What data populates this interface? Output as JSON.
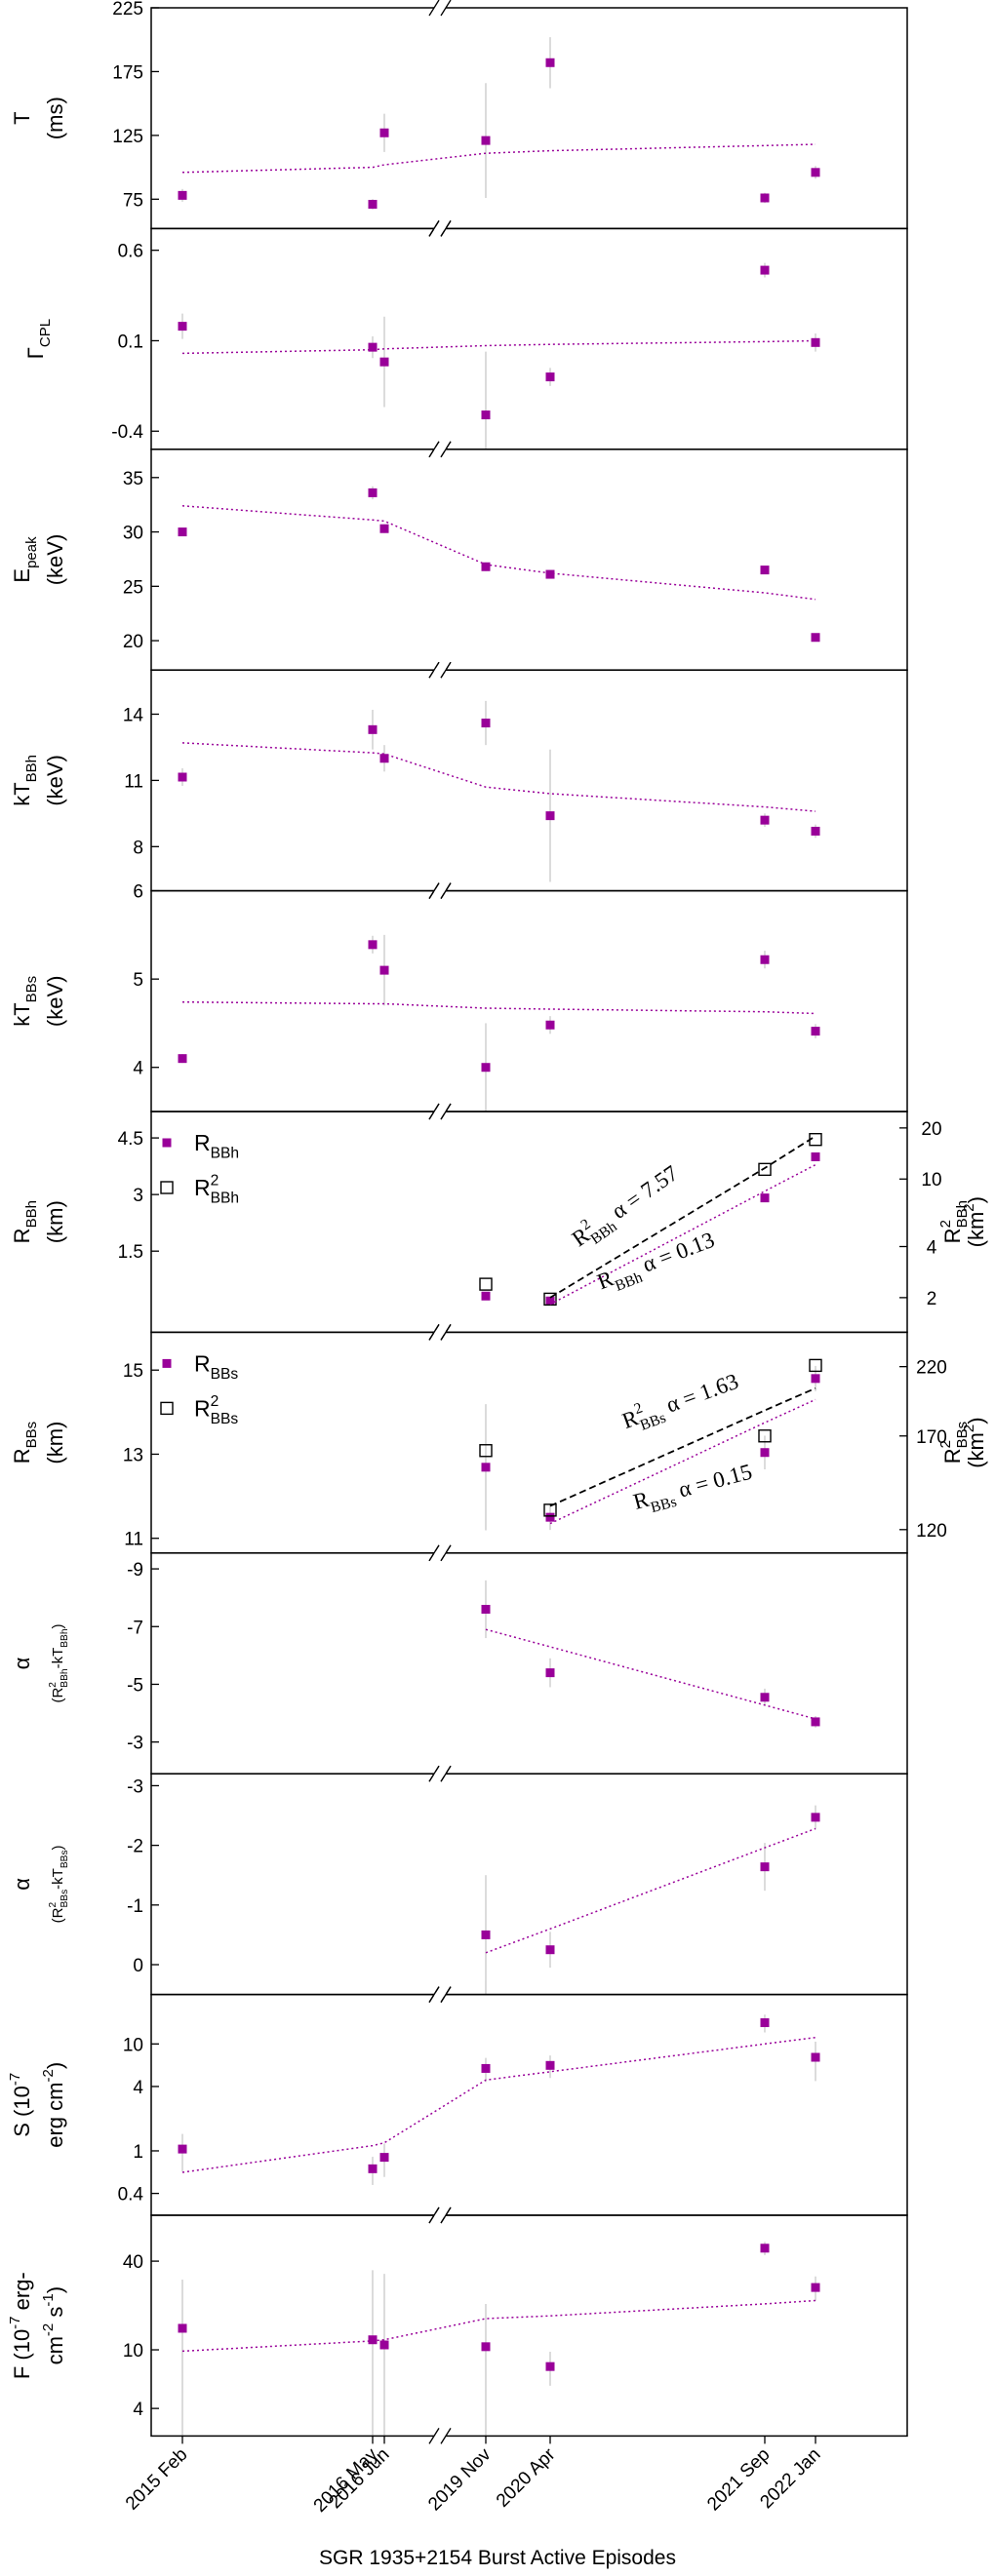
{
  "chart_data": {
    "type": "multi-panel",
    "categories": [
      "2015 Feb",
      "2016 May",
      "2016 Jun",
      "2019 Nov",
      "2020 Apr",
      "2021 Sep",
      "2022 Jan"
    ],
    "x_label": "SGR 1935+2154 Burst Active Episodes",
    "panels": [
      {
        "type": "scatter",
        "yscale": "linear",
        "ylim": [
          52,
          225
        ],
        "yticks": [
          75,
          125,
          175,
          225
        ],
        "y_label": [
          [
            {
              "text": "T"
            }
          ],
          [
            {
              "text": "(ms)"
            }
          ]
        ],
        "series": [
          {
            "marker": "square-filled",
            "color": "#990099",
            "values": [
              78,
              71,
              127,
              121,
              182,
              76,
              96
            ],
            "errors": [
              5,
              4,
              15,
              45,
              20,
              4,
              5
            ]
          },
          {
            "line": "dotted",
            "color": "#990099",
            "values": [
              96,
              100,
              102,
              111,
              113,
              117,
              118
            ]
          }
        ]
      },
      {
        "type": "scatter",
        "yscale": "linear",
        "ylim": [
          -0.5,
          0.72
        ],
        "yticks": [
          -0.4,
          0.1,
          0.6
        ],
        "y_label": [
          [
            {
              "text": "Γ"
            },
            {
              "text": "CPL",
              "pos": "sub"
            }
          ]
        ],
        "series": [
          {
            "marker": "square-filled",
            "color": "#990099",
            "values": [
              0.18,
              0.064,
              -0.017,
              -0.31,
              -0.1,
              0.49,
              0.09
            ],
            "errors": [
              0.07,
              0.06,
              0.25,
              0.35,
              0.05,
              0.04,
              0.05
            ]
          },
          {
            "line": "dotted",
            "color": "#990099",
            "values": [
              0.03,
              0.05,
              0.055,
              0.073,
              0.08,
              0.095,
              0.1
            ]
          }
        ]
      },
      {
        "type": "scatter",
        "yscale": "linear",
        "ylim": [
          17.3,
          37.6
        ],
        "yticks": [
          20,
          25,
          30,
          35
        ],
        "y_label": [
          [
            {
              "text": "E"
            },
            {
              "text": "peak",
              "pos": "sub"
            }
          ],
          [
            {
              "text": "(keV)"
            }
          ]
        ],
        "series": [
          {
            "marker": "square-filled",
            "color": "#990099",
            "values": [
              30,
              33.6,
              30.3,
              26.8,
              26.1,
              26.5,
              20.3
            ],
            "errors": [
              0.3,
              0.6,
              0.4,
              0.4,
              0.3,
              0.3,
              0.3
            ]
          },
          {
            "line": "dotted",
            "color": "#990099",
            "values": [
              32.4,
              31.1,
              31,
              27,
              26.2,
              24.4,
              23.8
            ]
          }
        ]
      },
      {
        "type": "scatter",
        "yscale": "linear",
        "ylim": [
          6,
          16
        ],
        "yticks": [
          8,
          11,
          14
        ],
        "y_label": [
          [
            {
              "text": "kT"
            },
            {
              "text": "BBh",
              "pos": "sub"
            }
          ],
          [
            {
              "text": "(keV)"
            }
          ]
        ],
        "series": [
          {
            "marker": "square-filled",
            "color": "#990099",
            "values": [
              11.15,
              13.3,
              12,
              13.6,
              9.4,
              9.2,
              8.7
            ],
            "errors": [
              0.4,
              0.9,
              0.6,
              1,
              3,
              0.3,
              0.3
            ]
          },
          {
            "line": "dotted",
            "color": "#990099",
            "values": [
              12.7,
              12.25,
              12.2,
              10.7,
              10.4,
              9.8,
              9.6
            ]
          }
        ]
      },
      {
        "type": "scatter",
        "yscale": "linear",
        "ylim": [
          3.5,
          6
        ],
        "yticks": [
          4,
          5,
          6
        ],
        "y_label": [
          [
            {
              "text": "kT"
            },
            {
              "text": "BBs",
              "pos": "sub"
            }
          ],
          [
            {
              "text": "(keV)"
            }
          ]
        ],
        "series": [
          {
            "marker": "square-filled",
            "color": "#990099",
            "values": [
              4.1,
              5.39,
              5.1,
              4,
              4.48,
              5.22,
              4.41
            ],
            "errors": [
              0.05,
              0.1,
              0.4,
              0.5,
              0.1,
              0.1,
              0.08
            ]
          },
          {
            "line": "dotted",
            "color": "#990099",
            "values": [
              4.74,
              4.72,
              4.72,
              4.67,
              4.66,
              4.63,
              4.61
            ]
          }
        ]
      },
      {
        "type": "scatter",
        "yscale": "linear",
        "ylim": [
          -0.65,
          5.2
        ],
        "yticks": [
          1.5,
          3,
          4.5
        ],
        "y2scale": "log",
        "y2lim": [
          1.25,
          25
        ],
        "y2ticks": [
          2,
          4,
          10,
          20
        ],
        "legend": "top-left",
        "y_label": [
          [
            {
              "text": "R"
            },
            {
              "text": "BBh",
              "pos": "sub"
            }
          ],
          [
            {
              "text": "(km)"
            }
          ]
        ],
        "y2_label": [
          [
            {
              "text": "R"
            },
            {
              "text": "2",
              "pos": "sup"
            },
            {
              "text": "BBh",
              "pos": "sub"
            }
          ],
          [
            {
              "text": "(km"
            },
            {
              "text": "2",
              "pos": "sup"
            },
            {
              "text": ")"
            }
          ]
        ],
        "series": [
          {
            "marker": "square-filled",
            "color": "#990099",
            "name": [
              {
                "text": "R"
              },
              {
                "text": "BBh",
                "pos": "sub"
              }
            ],
            "values": [
              null,
              null,
              null,
              0.31,
              0.18,
              2.91,
              4.0
            ],
            "errors": [
              null,
              null,
              null,
              0.1,
              0.1,
              0.1,
              0.1
            ]
          },
          {
            "marker": "square-open",
            "color": "#000000",
            "axis": "y2",
            "name": [
              {
                "text": "R"
              },
              {
                "text": "2",
                "pos": "sup"
              },
              {
                "text": "BBh",
                "pos": "sub"
              }
            ],
            "values": [
              null,
              null,
              null,
              2.4,
              1.96,
              11.4,
              17.1
            ]
          },
          {
            "line": "dashed",
            "color": "#000000",
            "axis": "y2",
            "values": [
              null,
              null,
              null,
              null,
              2.0,
              11.6,
              17.9
            ],
            "annotation": [
              {
                "text": "R"
              },
              {
                "text": "2",
                "pos": "sup"
              },
              {
                "text": "BBh",
                "pos": "sub"
              },
              {
                "text": " α = 7.57"
              }
            ]
          },
          {
            "line": "dotted",
            "color": "#990099",
            "values": [
              null,
              null,
              null,
              null,
              0.09,
              3.09,
              3.79
            ],
            "annotation": [
              {
                "text": "R"
              },
              {
                "text": "BBh",
                "pos": "sub"
              },
              {
                "text": " α = 0.13"
              }
            ]
          }
        ]
      },
      {
        "type": "scatter",
        "yscale": "linear",
        "ylim": [
          10.65,
          15.9
        ],
        "yticks": [
          11,
          13,
          15
        ],
        "y2scale": "log",
        "y2lim": [
          110,
          250
        ],
        "y2ticks": [
          120,
          170,
          220
        ],
        "legend": "top-left",
        "y_label": [
          [
            {
              "text": "R"
            },
            {
              "text": "BBs",
              "pos": "sub"
            }
          ],
          [
            {
              "text": "(km)"
            }
          ]
        ],
        "y2_label": [
          [
            {
              "text": "R"
            },
            {
              "text": "2",
              "pos": "sup"
            },
            {
              "text": "BBs",
              "pos": "sub"
            }
          ],
          [
            {
              "text": "(km"
            },
            {
              "text": "2",
              "pos": "sup"
            },
            {
              "text": ")"
            }
          ]
        ],
        "series": [
          {
            "marker": "square-filled",
            "color": "#990099",
            "name": [
              {
                "text": "R"
              },
              {
                "text": "BBs",
                "pos": "sub"
              }
            ],
            "values": [
              null,
              null,
              null,
              12.69,
              11.5,
              13.04,
              14.8
            ],
            "errors": [
              null,
              null,
              null,
              1.5,
              0.3,
              0.4,
              0.3
            ]
          },
          {
            "marker": "square-open",
            "color": "#000000",
            "axis": "y2",
            "name": [
              {
                "text": "R"
              },
              {
                "text": "2",
                "pos": "sup"
              },
              {
                "text": "BBs",
                "pos": "sub"
              }
            ],
            "values": [
              null,
              null,
              null,
              161,
              129,
              170,
              221
            ]
          },
          {
            "line": "dashed",
            "color": "#000000",
            "axis": "y2",
            "values": [
              null,
              null,
              null,
              null,
              131,
              187,
              203
            ],
            "annotation": [
              {
                "text": "R"
              },
              {
                "text": "2",
                "pos": "sup"
              },
              {
                "text": "BBs",
                "pos": "sub"
              },
              {
                "text": " α = 1.63"
              }
            ]
          },
          {
            "line": "dotted",
            "color": "#990099",
            "values": [
              null,
              null,
              null,
              null,
              11.35,
              13.75,
              14.3
            ],
            "annotation": [
              {
                "text": "R"
              },
              {
                "text": "BBs",
                "pos": "sub"
              },
              {
                "text": " α = 0.15"
              }
            ]
          }
        ]
      },
      {
        "type": "scatter",
        "yscale": "linear",
        "ylim": [
          -1.9,
          -9.55
        ],
        "yticks": [
          -9,
          -7,
          -5,
          -3
        ],
        "y_label": [
          [
            {
              "text": "α"
            }
          ],
          [
            {
              "text": "(R"
            },
            {
              "text": "2",
              "pos": "sup"
            },
            {
              "text": "BBh",
              "pos": "sub"
            },
            {
              "text": "-kT"
            },
            {
              "text": "BBh",
              "pos": "sub"
            },
            {
              "text": ")"
            }
          ]
        ],
        "series": [
          {
            "marker": "square-filled",
            "color": "#990099",
            "values": [
              null,
              null,
              null,
              -7.6,
              -5.4,
              -4.55,
              -3.7
            ],
            "errors": [
              null,
              null,
              null,
              1,
              0.5,
              0.3,
              0.2
            ]
          },
          {
            "line": "dotted",
            "color": "#990099",
            "values": [
              null,
              null,
              null,
              -6.9,
              -6.3,
              -4.28,
              -3.8
            ]
          }
        ]
      },
      {
        "type": "scatter",
        "yscale": "linear",
        "ylim": [
          0.5,
          -3.2
        ],
        "yticks": [
          -3,
          -2,
          -1,
          0
        ],
        "y_label": [
          [
            {
              "text": "α"
            }
          ],
          [
            {
              "text": "(R"
            },
            {
              "text": "2",
              "pos": "sup"
            },
            {
              "text": "BBs",
              "pos": "sub"
            },
            {
              "text": "-kT"
            },
            {
              "text": "BBs",
              "pos": "sub"
            },
            {
              "text": ")"
            }
          ]
        ],
        "series": [
          {
            "marker": "square-filled",
            "color": "#990099",
            "values": [
              null,
              null,
              null,
              -0.5,
              -0.25,
              -1.64,
              -2.47
            ],
            "errors": [
              null,
              null,
              null,
              1,
              0.3,
              0.4,
              0.2
            ]
          },
          {
            "line": "dotted",
            "color": "#990099",
            "values": [
              null,
              null,
              null,
              -0.2,
              -0.6,
              -1.96,
              -2.28
            ]
          }
        ]
      },
      {
        "type": "scatter",
        "yscale": "log",
        "ylim": [
          0.25,
          29
        ],
        "yticks": [
          0.4,
          1,
          4,
          10
        ],
        "y_label": [
          [
            {
              "text": "S (10"
            },
            {
              "text": "-7",
              "pos": "sup"
            }
          ],
          [
            {
              "text": "erg cm"
            },
            {
              "text": "-2",
              "pos": "sup"
            },
            {
              "text": ")"
            }
          ]
        ],
        "series": [
          {
            "marker": "square-filled",
            "color": "#990099",
            "values": [
              1.04,
              0.68,
              0.87,
              5.9,
              6.3,
              15.8,
              7.5
            ],
            "errors": [
              0.4,
              0.2,
              0.3,
              1.5,
              1.5,
              3,
              3
            ]
          },
          {
            "line": "dotted",
            "color": "#990099",
            "values": [
              0.63,
              1.12,
              1.19,
              4.6,
              5.5,
              10,
              11.5
            ]
          }
        ]
      },
      {
        "type": "scatter",
        "yscale": "log",
        "ylim": [
          2.6,
          82
        ],
        "yticks": [
          4,
          10,
          40
        ],
        "y_label": [
          [
            {
              "text": "F (10"
            },
            {
              "text": "-7",
              "pos": "sup"
            },
            {
              "text": " erg-"
            }
          ],
          [
            {
              "text": "cm"
            },
            {
              "text": "-2",
              "pos": "sup"
            },
            {
              "text": " s"
            },
            {
              "text": "-1",
              "pos": "sup"
            },
            {
              "text": ")"
            }
          ]
        ],
        "series": [
          {
            "marker": "square-filled",
            "color": "#990099",
            "values": [
              14,
              11.7,
              10.8,
              10.5,
              7.7,
              49,
              26.5
            ],
            "errors": [
              16,
              23,
              22,
              10,
              2,
              5,
              5
            ]
          },
          {
            "line": "dotted",
            "color": "#990099",
            "values": [
              9.8,
              11.5,
              11.7,
              16.3,
              17,
              20.5,
              21.6
            ]
          }
        ]
      }
    ]
  }
}
